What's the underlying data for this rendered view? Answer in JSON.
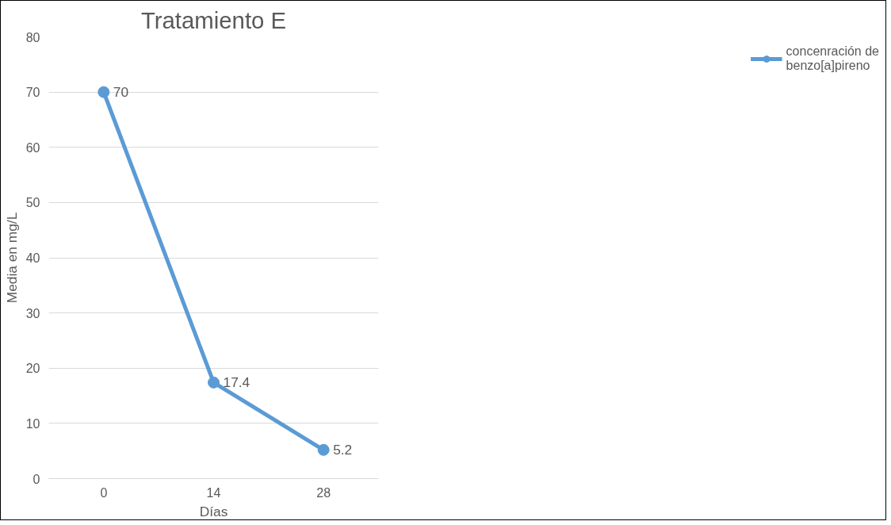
{
  "chart_data": {
    "type": "line",
    "title": "Tratamiento E",
    "xlabel": "Días",
    "ylabel": "Media en mg/L",
    "categories": [
      "0",
      "14",
      "28"
    ],
    "series": [
      {
        "name": "concenración de\nbenzo[a]pireno",
        "color": "#5b9bd5",
        "values": [
          70,
          17.4,
          5.2
        ]
      }
    ],
    "ylim": [
      0,
      80
    ],
    "yticks": [
      0,
      10,
      20,
      30,
      40,
      50,
      60,
      70,
      80
    ],
    "grid": "y",
    "legend": "right",
    "marker": "circle",
    "line_style": "solid",
    "data_labels": true
  }
}
